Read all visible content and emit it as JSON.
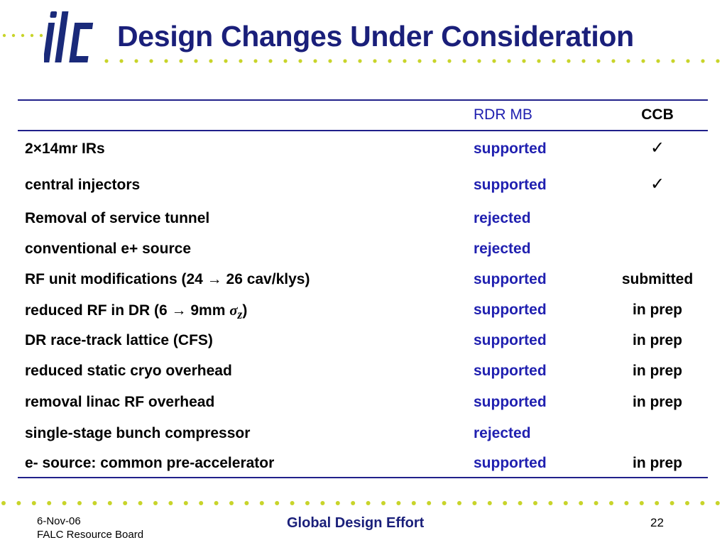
{
  "header": {
    "title": "Design Changes Under Consideration",
    "logo_label": "ilc",
    "brand_colors": {
      "navy": "#1a1f7a",
      "dots": "#c8d42a"
    }
  },
  "table": {
    "col_headers": [
      "",
      "RDR MB",
      "CCB"
    ],
    "rows": [
      {
        "change": "2×14mr IRs",
        "rdr_mb": "supported",
        "ccb": "✓"
      },
      {
        "change": "central injectors",
        "rdr_mb": "supported",
        "ccb": "✓"
      },
      {
        "change": "Removal of service tunnel",
        "rdr_mb": "rejected",
        "ccb": ""
      },
      {
        "change": "conventional e+ source",
        "rdr_mb": "rejected",
        "ccb": ""
      },
      {
        "change": "RF unit modifications (24 → 26 cav/klys)",
        "rdr_mb": "supported",
        "ccb": "submitted"
      },
      {
        "change_prefix": "reduced RF in DR (6 → 9mm ",
        "change_sigma": "σ",
        "change_sub": "z",
        "change_suffix": ")",
        "rdr_mb": "supported",
        "ccb": "in prep"
      },
      {
        "change": "DR race-track lattice (CFS)",
        "rdr_mb": "supported",
        "ccb": "in prep"
      },
      {
        "change": "reduced static cryo overhead",
        "rdr_mb": "supported",
        "ccb": "in prep"
      },
      {
        "change": "removal linac RF overhead",
        "rdr_mb": "supported",
        "ccb": "in prep"
      },
      {
        "change": "single-stage bunch compressor",
        "rdr_mb": "rejected",
        "ccb": ""
      },
      {
        "change": "e- source: common pre-accelerator",
        "rdr_mb": "supported",
        "ccb": "in prep"
      }
    ]
  },
  "footer": {
    "date": "6-Nov-06",
    "board": "FALC Resource Board",
    "center": "Global Design Effort",
    "page": "22"
  }
}
